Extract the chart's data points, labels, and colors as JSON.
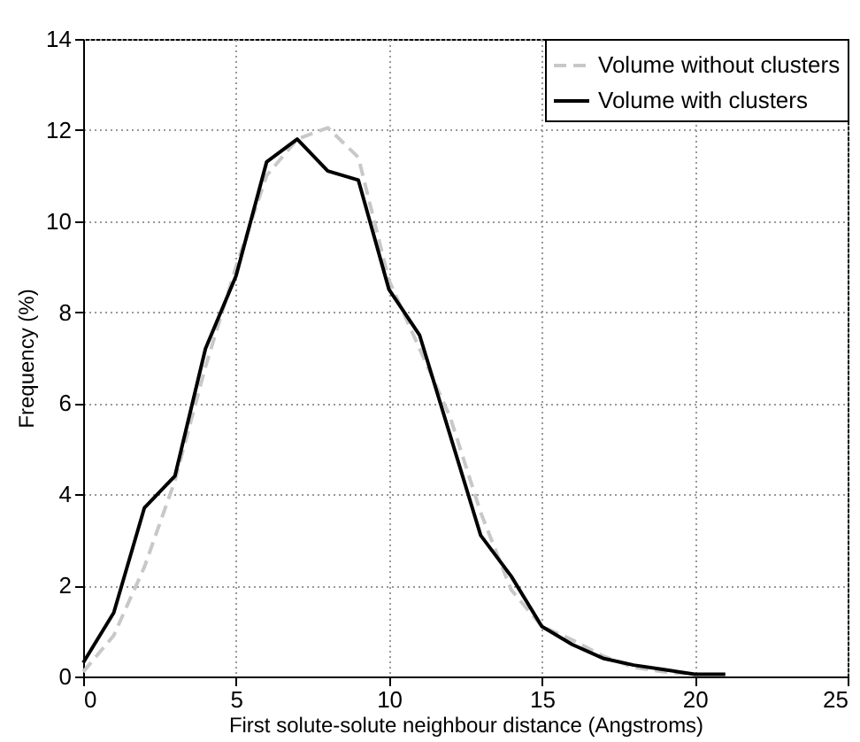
{
  "chart_data": {
    "type": "line",
    "xlabel": "First solute-solute neighbour distance (Angstroms)",
    "ylabel": "Frequency (%)",
    "x": [
      0,
      1,
      2,
      3,
      4,
      5,
      6,
      7,
      8,
      9,
      10,
      11,
      12,
      13,
      14,
      15,
      16,
      17,
      18,
      19,
      20,
      21
    ],
    "series": [
      {
        "name": "Volume without clusters",
        "color": "#c8c8c8",
        "line_style": "dashed",
        "values": [
          0.1,
          0.9,
          2.4,
          4.3,
          6.8,
          9.0,
          11.0,
          11.8,
          12.05,
          11.4,
          8.7,
          7.2,
          5.7,
          3.6,
          1.9,
          1.1,
          0.8,
          0.45,
          0.2,
          0.1,
          0.05,
          null
        ]
      },
      {
        "name": "Volume with clusters",
        "color": "#000000",
        "line_style": "solid",
        "values": [
          0.3,
          1.4,
          3.7,
          4.4,
          7.2,
          8.8,
          11.3,
          11.8,
          11.1,
          10.9,
          8.5,
          7.5,
          5.3,
          3.1,
          2.2,
          1.1,
          0.7,
          0.4,
          0.25,
          0.15,
          0.05,
          0.05
        ]
      }
    ],
    "xlim": [
      0,
      25
    ],
    "xticks": [
      0,
      5,
      10,
      15,
      20,
      25
    ],
    "ylim": [
      0,
      14
    ],
    "yticks": [
      0,
      2,
      4,
      6,
      8,
      10,
      12,
      14
    ],
    "grid": true,
    "legend": "top right",
    "marker": "none"
  }
}
